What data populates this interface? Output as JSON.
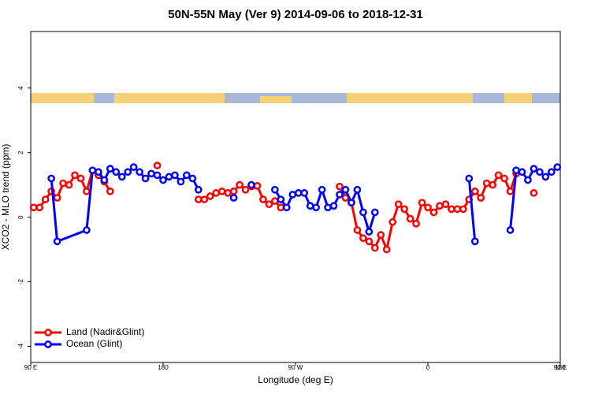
{
  "chart_data": {
    "type": "line",
    "title": "50N-55N May (Ver 9)   2014-09-06 to 2018-12-31",
    "x_label": "Longitude (deg E)",
    "y_label": "XCO2 - MLO trend (ppm)",
    "xlim": [
      90,
      450
    ],
    "ylim": [
      -4.5,
      5.75
    ],
    "xticks": [
      {
        "value": 90,
        "label": "90 E"
      },
      {
        "value": 180,
        "label": "180"
      },
      {
        "value": 270,
        "label": "90 W"
      },
      {
        "value": 360,
        "label": "0"
      },
      {
        "value": 450,
        "label": "90 E"
      },
      {
        "value": 540,
        "label": "180"
      }
    ],
    "yticks": [
      -4,
      -2,
      0,
      2,
      4
    ],
    "legend": "bottom-left",
    "series": [
      {
        "name": "Land (Nadir&Glint)",
        "color": "#ff0000",
        "x": [
          92,
          96,
          100,
          104,
          108,
          112,
          116,
          120,
          124,
          128,
          132,
          136,
          140,
          144,
          160,
          176,
          190,
          204,
          208,
          212,
          216,
          220,
          224,
          228,
          232,
          236,
          240,
          244,
          248,
          252,
          256,
          260,
          280,
          300,
          304,
          308,
          312,
          316,
          320,
          324,
          328,
          332,
          336,
          340,
          344,
          348,
          352,
          356,
          360,
          364,
          368,
          372,
          376,
          380,
          384,
          388,
          392,
          396,
          400,
          404,
          408,
          412,
          416,
          420,
          426,
          432
        ],
        "values": [
          0.3,
          0.3,
          0.55,
          0.8,
          0.6,
          1.05,
          1.0,
          1.3,
          1.2,
          0.8,
          1.45,
          1.3,
          1.1,
          0.8,
          null,
          1.6,
          null,
          0.55,
          0.55,
          0.65,
          0.75,
          0.8,
          0.75,
          0.8,
          1.0,
          0.85,
          0.95,
          0.97,
          0.55,
          0.4,
          0.5,
          0.3,
          null,
          0.95,
          0.6,
          0.45,
          -0.4,
          -0.65,
          -0.75,
          -0.95,
          -0.55,
          -1.0,
          -0.15,
          0.4,
          0.25,
          -0.05,
          -0.2,
          0.45,
          0.3,
          0.15,
          0.35,
          0.4,
          0.25,
          0.25,
          0.25,
          0.55,
          0.8,
          0.6,
          1.05,
          1.0,
          1.3,
          1.2,
          0.8,
          1.35,
          null,
          0.75
        ]
      },
      {
        "name": "Ocean (Glint)",
        "color": "#0000ff",
        "x": [
          104,
          108,
          128,
          132,
          136,
          140,
          144,
          148,
          152,
          156,
          160,
          164,
          168,
          172,
          176,
          180,
          184,
          188,
          192,
          196,
          200,
          204,
          216,
          228,
          234,
          240,
          248,
          256,
          260,
          264,
          268,
          272,
          276,
          280,
          284,
          288,
          292,
          296,
          300,
          304,
          308,
          312,
          316,
          320,
          324,
          356,
          388,
          392,
          404,
          416,
          420,
          424,
          428,
          432,
          436,
          440,
          444,
          448
        ],
        "values": [
          1.2,
          -0.75,
          -0.4,
          1.45,
          1.4,
          1.15,
          1.5,
          1.4,
          1.25,
          1.4,
          1.55,
          1.4,
          1.2,
          1.35,
          1.3,
          1.15,
          1.25,
          1.3,
          1.1,
          1.3,
          1.2,
          0.85,
          null,
          0.6,
          null,
          1.0,
          null,
          0.85,
          0.55,
          0.3,
          0.7,
          0.75,
          0.75,
          0.35,
          0.3,
          0.85,
          0.3,
          0.35,
          0.7,
          0.85,
          0.45,
          0.85,
          0.15,
          -0.45,
          0.15,
          null,
          1.2,
          -0.75,
          null,
          -0.4,
          1.45,
          1.4,
          1.15,
          1.5,
          1.4,
          1.25,
          1.4,
          1.55
        ]
      }
    ]
  }
}
